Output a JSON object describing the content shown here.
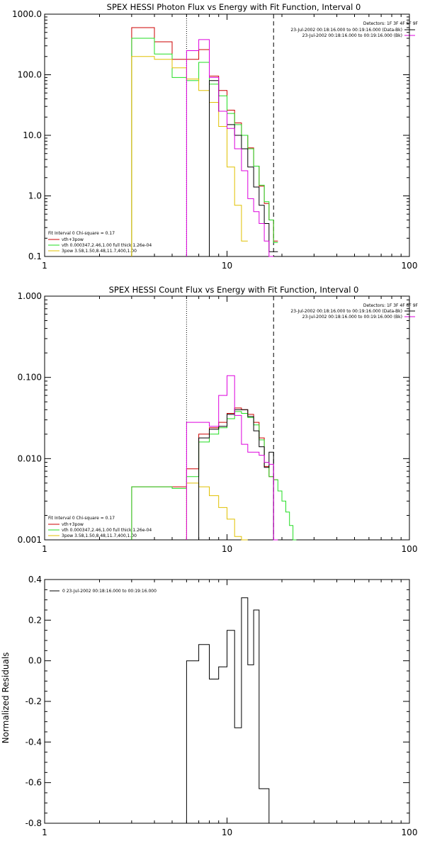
{
  "panels": [
    {
      "title": "SPEX HESSI Photon Flux vs Energy with Fit Function, Interval 0",
      "yscale": "log",
      "ylim": [
        0.1,
        1000
      ],
      "yticks": [
        "1000.0",
        "100.0",
        "10.0",
        "1.0",
        "0.1"
      ],
      "ylabel": ""
    },
    {
      "title": "SPEX HESSI Count Flux vs Energy with Fit Function, Interval 0",
      "yscale": "log",
      "ylim": [
        0.001,
        1
      ],
      "yticks": [
        "1.000",
        "0.100",
        "0.010",
        "0.001"
      ],
      "ylabel": ""
    },
    {
      "title": "",
      "yscale": "linear",
      "ylim": [
        -0.8,
        0.4
      ],
      "yticks": [
        "0.4",
        "0.2",
        "0.0",
        "-0.2",
        "-0.4",
        "-0.6",
        "-0.8"
      ],
      "ylabel": "Normalized Residuals"
    }
  ],
  "xaxis": {
    "scale": "log",
    "xlim": [
      1,
      100
    ],
    "ticks": [
      "1",
      "10",
      "100"
    ]
  },
  "top_legend": {
    "line1": "Detectors: 1F 3F 4F 6F 9F",
    "line2": "23-Jul-2002 00:18:16.000 to 00:19:16.000 (Data-Bk)",
    "line3": "23-Jul-2002 00:18:16.000 to 00:19:16.000 (Bk)"
  },
  "fit_legend": {
    "header": "Fit Interval 0   Chi-square = 0.17",
    "entry1": "vth+3pow",
    "entry2": "vth 0.000347,2.46,1.00  full thick 1.26e-04",
    "entry3": "3pow 3.58,1.50,8.48,11.7,400,1.00"
  },
  "resid_legend": "0  23-Jul-2002 00:18:16.000 to 00:19:16.000",
  "colors": {
    "data_minus_bk": "#000000",
    "background": "#dd00dd",
    "vth_3pow": "#cc0000",
    "vth": "#22dd22",
    "three_pow": "#e0c000",
    "axes": "#000000"
  },
  "chart_data": [
    {
      "type": "line",
      "title": "SPEX HESSI Photon Flux vs Energy with Fit Function, Interval 0",
      "xscale": "log",
      "yscale": "log",
      "xlim": [
        1,
        100
      ],
      "ylim": [
        0.1,
        1000
      ],
      "vlines": [
        {
          "x": 6,
          "style": "dotted"
        },
        {
          "x": 18,
          "style": "dashed"
        }
      ],
      "series": [
        {
          "name": "vth+3pow",
          "color": "#cc0000",
          "step": true,
          "x": [
            3,
            4,
            5,
            6,
            7,
            8,
            9,
            10,
            11,
            12,
            13,
            14,
            15,
            16,
            17,
            18
          ],
          "y": [
            600,
            350,
            180,
            180,
            260,
            95,
            55,
            26,
            16,
            10,
            6.2,
            3.1,
            1.45,
            0.75,
            0.4,
            0.18
          ]
        },
        {
          "name": "vth 0.000347,2.46,1.00  full thick 1.26e-04",
          "color": "#22dd22",
          "step": true,
          "x": [
            3,
            4,
            5,
            6,
            7,
            8,
            9,
            10,
            11,
            12,
            13,
            14,
            15,
            16,
            17,
            18
          ],
          "y": [
            400,
            220,
            90,
            80,
            160,
            70,
            45,
            23,
            15,
            10,
            6,
            3.1,
            1.5,
            0.8,
            0.4,
            0.17
          ]
        },
        {
          "name": "3pow 3.58,1.50,8.48,11.7,400,1.00",
          "color": "#e0c000",
          "step": true,
          "x": [
            3,
            4,
            5,
            6,
            7,
            8,
            9,
            10,
            11,
            12
          ],
          "y": [
            200,
            180,
            130,
            85,
            55,
            35,
            14,
            3,
            0.7,
            0.18
          ]
        },
        {
          "name": "Data-Bk",
          "color": "#000000",
          "step": true,
          "x": [
            8,
            9,
            10,
            11,
            12,
            13,
            14,
            15,
            16,
            17,
            18
          ],
          "y": [
            80,
            25,
            15,
            10,
            6,
            3,
            1.4,
            0.7,
            0.35,
            0.12,
            0.12
          ]
        },
        {
          "name": "Bk",
          "color": "#dd00dd",
          "step": true,
          "x": [
            6,
            7,
            8,
            9,
            10,
            11,
            12,
            13,
            14,
            15,
            16,
            17
          ],
          "y": [
            250,
            380,
            90,
            25,
            13,
            6,
            2.6,
            0.9,
            0.55,
            0.35,
            0.18,
            0.1
          ]
        }
      ]
    },
    {
      "type": "line",
      "title": "SPEX HESSI Count Flux vs Energy with Fit Function, Interval 0",
      "xscale": "log",
      "yscale": "log",
      "xlim": [
        1,
        100
      ],
      "ylim": [
        0.001,
        1
      ],
      "vlines": [
        {
          "x": 6,
          "style": "dotted"
        },
        {
          "x": 18,
          "style": "dashed"
        }
      ],
      "series": [
        {
          "name": "vth+3pow",
          "color": "#cc0000",
          "step": true,
          "x": [
            3,
            4,
            5,
            6,
            7,
            8,
            9,
            10,
            11,
            12,
            13,
            14,
            15,
            16,
            17,
            18
          ],
          "y": [
            0.0045,
            0.0045,
            0.0045,
            0.0075,
            0.02,
            0.024,
            0.028,
            0.036,
            0.042,
            0.04,
            0.035,
            0.028,
            0.018,
            0.008,
            0.006,
            0.0055
          ]
        },
        {
          "name": "vth 0.000347,2.46,1.00  full thick 1.26e-04",
          "color": "#22dd22",
          "step": true,
          "x": [
            3,
            4,
            5,
            6,
            7,
            8,
            9,
            10,
            11,
            12,
            13,
            14,
            15,
            16,
            17,
            18,
            19,
            20,
            21,
            22,
            23
          ],
          "y": [
            0.0045,
            0.0045,
            0.0043,
            0.006,
            0.016,
            0.02,
            0.024,
            0.031,
            0.038,
            0.036,
            0.032,
            0.026,
            0.017,
            0.009,
            0.006,
            0.0055,
            0.004,
            0.003,
            0.0022,
            0.0015,
            0.001
          ]
        },
        {
          "name": "3pow 3.58,1.50,8.48,11.7,400,1.00",
          "color": "#e0c000",
          "step": true,
          "x": [
            6,
            7,
            8,
            9,
            10,
            11,
            12
          ],
          "y": [
            0.005,
            0.0045,
            0.0035,
            0.0025,
            0.0018,
            0.0011,
            0.001
          ]
        },
        {
          "name": "Data-Bk",
          "color": "#000000",
          "step": true,
          "x": [
            7,
            8,
            9,
            10,
            11,
            12,
            13,
            14,
            15,
            16,
            17,
            18
          ],
          "y": [
            0.018,
            0.023,
            0.025,
            0.035,
            0.04,
            0.04,
            0.033,
            0.022,
            0.014,
            0.0078,
            0.012,
            0.001
          ]
        },
        {
          "name": "Bk",
          "color": "#dd00dd",
          "step": true,
          "x": [
            6,
            7,
            8,
            9,
            10,
            11,
            12,
            13,
            14,
            15,
            16,
            17,
            18
          ],
          "y": [
            0.028,
            0.028,
            0.025,
            0.06,
            0.105,
            0.034,
            0.015,
            0.012,
            0.012,
            0.011,
            0.009,
            0.0085,
            0.001
          ]
        }
      ]
    },
    {
      "type": "line",
      "title": "",
      "ylabel": "Normalized Residuals",
      "xscale": "log",
      "yscale": "linear",
      "xlim": [
        1,
        100
      ],
      "ylim": [
        -0.8,
        0.4
      ],
      "series": [
        {
          "name": "0  23-Jul-2002 00:18:16.000 to 00:19:16.000",
          "color": "#000000",
          "step": true,
          "x": [
            6,
            7,
            8,
            9,
            10,
            11,
            12,
            13,
            14,
            15,
            16,
            17,
            18
          ],
          "y": [
            0.0,
            0.08,
            -0.09,
            -0.03,
            0.15,
            -0.33,
            0.31,
            -0.02,
            0.25,
            -0.63,
            -0.63,
            -0.8,
            -0.8
          ]
        }
      ]
    }
  ]
}
